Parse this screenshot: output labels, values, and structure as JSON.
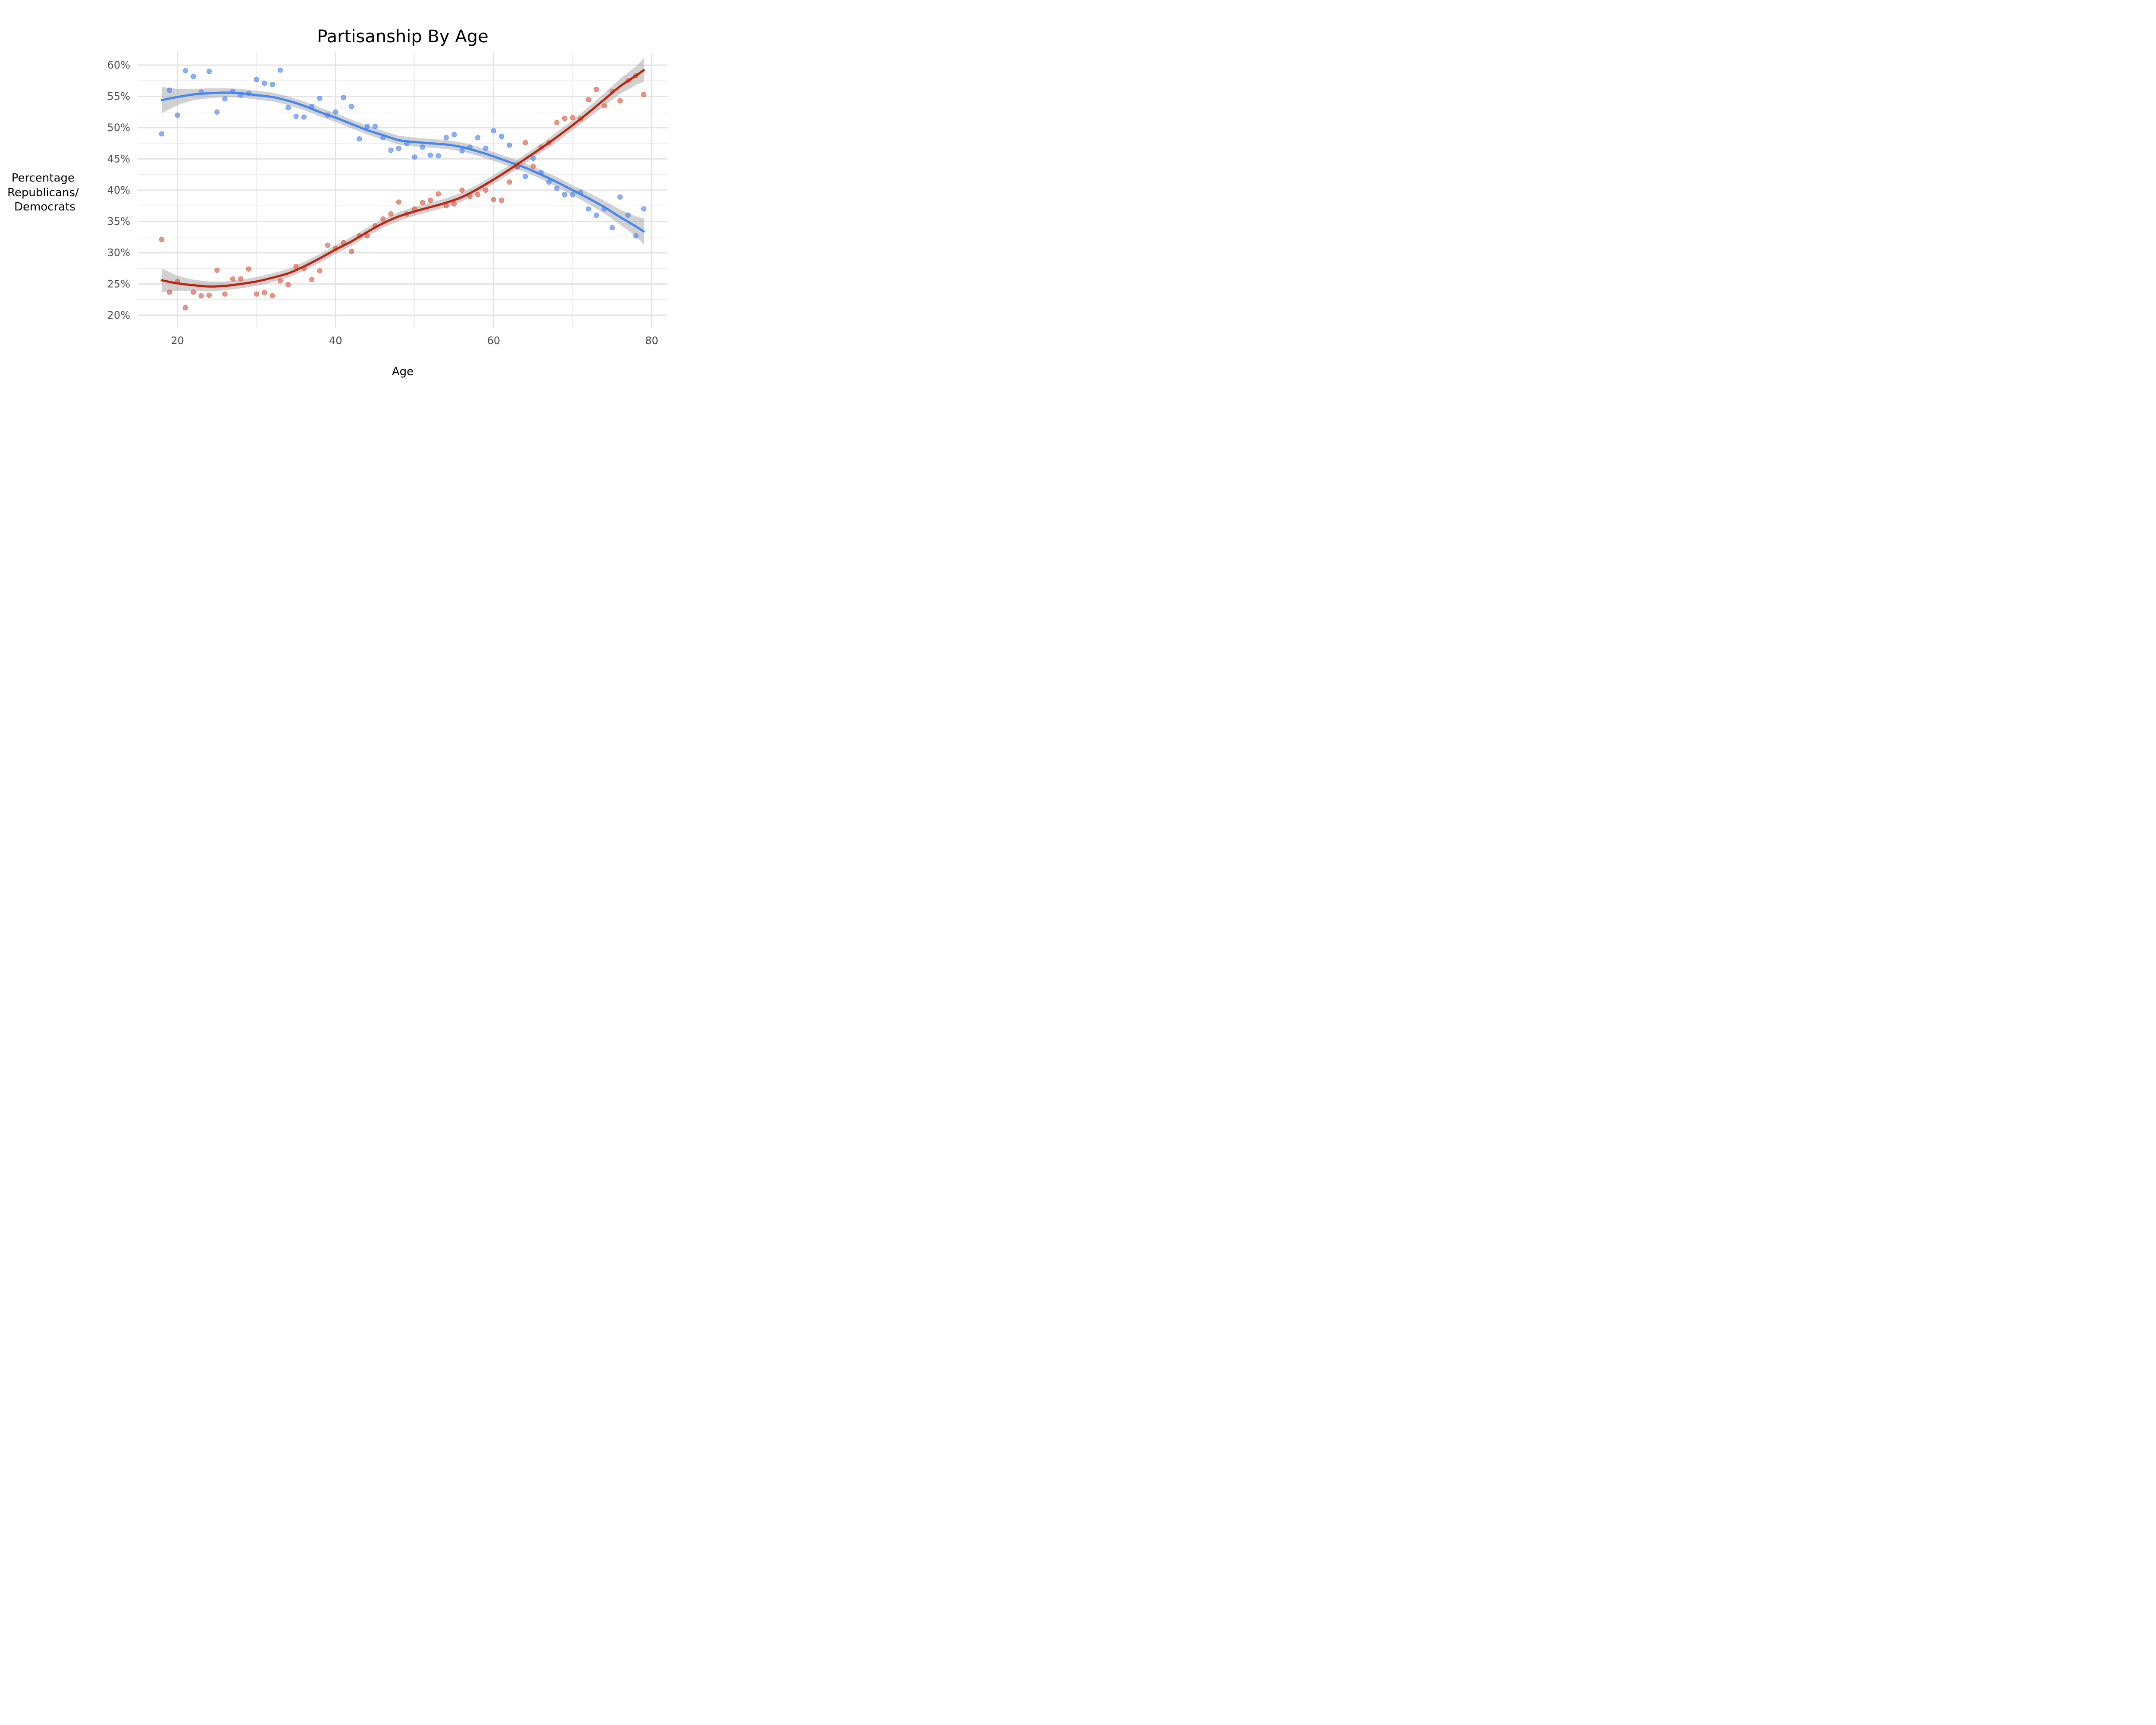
{
  "chart_data": {
    "type": "scatter",
    "title": "Partisanship By Age",
    "xlabel": "Age",
    "ylabel_lines": [
      "Percentage",
      "Republicans/",
      "Democrats"
    ],
    "xlim": [
      15,
      82
    ],
    "ylim": [
      18,
      62
    ],
    "x_ticks": [
      20,
      40,
      60,
      80
    ],
    "x_tick_labels": [
      "20",
      "40",
      "60",
      "80"
    ],
    "y_ticks": [
      20,
      25,
      30,
      35,
      40,
      45,
      50,
      55,
      60
    ],
    "y_tick_labels": [
      "20%",
      "25%",
      "30%",
      "35%",
      "40%",
      "45%",
      "50%",
      "55%",
      "60%"
    ],
    "grid": true,
    "legend": "none",
    "series": [
      {
        "color": "#4F86F7",
        "smooth_color": "#4285F4",
        "points": [
          [
            18,
            49.0
          ],
          [
            19,
            56.0
          ],
          [
            20,
            52.0
          ],
          [
            21,
            59.1
          ],
          [
            22,
            58.2
          ],
          [
            23,
            55.7
          ],
          [
            24,
            59.0
          ],
          [
            25,
            52.5
          ],
          [
            26,
            54.6
          ],
          [
            27,
            55.8
          ],
          [
            28,
            55.2
          ],
          [
            29,
            55.5
          ],
          [
            30,
            57.7
          ],
          [
            31,
            57.1
          ],
          [
            32,
            56.9
          ],
          [
            33,
            59.2
          ],
          [
            34,
            53.2
          ],
          [
            35,
            51.8
          ],
          [
            36,
            51.7
          ],
          [
            37,
            53.4
          ],
          [
            38,
            54.7
          ],
          [
            39,
            52.0
          ],
          [
            40,
            52.5
          ],
          [
            41,
            54.8
          ],
          [
            42,
            53.4
          ],
          [
            43,
            48.2
          ],
          [
            44,
            50.2
          ],
          [
            45,
            50.2
          ],
          [
            46,
            48.4
          ],
          [
            47,
            46.4
          ],
          [
            48,
            46.7
          ],
          [
            49,
            47.5
          ],
          [
            50,
            45.3
          ],
          [
            51,
            46.9
          ],
          [
            52,
            45.6
          ],
          [
            53,
            45.5
          ],
          [
            54,
            48.4
          ],
          [
            55,
            48.9
          ],
          [
            56,
            46.3
          ],
          [
            57,
            46.9
          ],
          [
            58,
            48.4
          ],
          [
            59,
            46.7
          ],
          [
            60,
            49.5
          ],
          [
            61,
            48.6
          ],
          [
            62,
            47.2
          ],
          [
            63,
            43.8
          ],
          [
            64,
            42.2
          ],
          [
            65,
            45.1
          ],
          [
            66,
            42.8
          ],
          [
            67,
            41.3
          ],
          [
            68,
            40.3
          ],
          [
            69,
            39.3
          ],
          [
            70,
            39.3
          ],
          [
            71,
            39.6
          ],
          [
            72,
            37.0
          ],
          [
            73,
            36.0
          ],
          [
            74,
            37.0
          ],
          [
            75,
            34.0
          ],
          [
            76,
            38.9
          ],
          [
            77,
            36.0
          ],
          [
            78,
            32.7
          ],
          [
            79,
            37.0
          ]
        ],
        "smooth": [
          [
            18,
            54.4
          ],
          [
            20,
            54.9
          ],
          [
            22,
            55.3
          ],
          [
            24,
            55.5
          ],
          [
            26,
            55.6
          ],
          [
            28,
            55.5
          ],
          [
            30,
            55.2
          ],
          [
            32,
            54.9
          ],
          [
            34,
            54.3
          ],
          [
            36,
            53.5
          ],
          [
            38,
            52.5
          ],
          [
            40,
            51.6
          ],
          [
            42,
            50.6
          ],
          [
            44,
            49.6
          ],
          [
            46,
            48.8
          ],
          [
            48,
            48.0
          ],
          [
            50,
            47.7
          ],
          [
            52,
            47.5
          ],
          [
            54,
            47.3
          ],
          [
            56,
            46.9
          ],
          [
            58,
            46.2
          ],
          [
            60,
            45.4
          ],
          [
            62,
            44.5
          ],
          [
            64,
            43.6
          ],
          [
            66,
            42.5
          ],
          [
            68,
            41.3
          ],
          [
            70,
            40.0
          ],
          [
            72,
            38.7
          ],
          [
            74,
            37.3
          ],
          [
            76,
            35.7
          ],
          [
            78,
            34.2
          ],
          [
            79,
            33.4
          ]
        ],
        "band_halfwidth": [
          2.1,
          1.3,
          0.9,
          0.8,
          0.7,
          0.7,
          0.7,
          0.7,
          0.7,
          0.7,
          0.7,
          0.7,
          0.7,
          0.7,
          0.7,
          0.7,
          0.7,
          0.7,
          0.7,
          0.7,
          0.7,
          0.7,
          0.7,
          0.7,
          0.7,
          0.8,
          0.8,
          0.9,
          1.0,
          1.2,
          1.6,
          2.1
        ]
      },
      {
        "color": "#D9604A",
        "smooth_color": "#C0220F",
        "points": [
          [
            18,
            32.1
          ],
          [
            19,
            23.7
          ],
          [
            20,
            25.4
          ],
          [
            21,
            21.2
          ],
          [
            22,
            23.7
          ],
          [
            23,
            23.1
          ],
          [
            24,
            23.2
          ],
          [
            25,
            27.2
          ],
          [
            26,
            23.4
          ],
          [
            27,
            25.8
          ],
          [
            28,
            25.8
          ],
          [
            29,
            27.4
          ],
          [
            30,
            23.4
          ],
          [
            31,
            23.6
          ],
          [
            32,
            23.1
          ],
          [
            33,
            25.5
          ],
          [
            34,
            24.9
          ],
          [
            35,
            27.8
          ],
          [
            36,
            27.5
          ],
          [
            37,
            25.7
          ],
          [
            38,
            27.1
          ],
          [
            39,
            31.2
          ],
          [
            40,
            30.7
          ],
          [
            41,
            31.6
          ],
          [
            42,
            30.2
          ],
          [
            43,
            32.7
          ],
          [
            44,
            32.7
          ],
          [
            45,
            34.3
          ],
          [
            46,
            35.4
          ],
          [
            47,
            36.2
          ],
          [
            48,
            38.1
          ],
          [
            49,
            36.2
          ],
          [
            50,
            37.0
          ],
          [
            51,
            38.0
          ],
          [
            52,
            38.4
          ],
          [
            53,
            39.4
          ],
          [
            54,
            37.5
          ],
          [
            55,
            37.8
          ],
          [
            56,
            40.0
          ],
          [
            57,
            39.0
          ],
          [
            58,
            39.3
          ],
          [
            59,
            40.0
          ],
          [
            60,
            38.5
          ],
          [
            61,
            38.4
          ],
          [
            62,
            41.3
          ],
          [
            63,
            43.7
          ],
          [
            64,
            47.6
          ],
          [
            65,
            43.8
          ],
          [
            66,
            46.9
          ],
          [
            67,
            47.6
          ],
          [
            68,
            50.8
          ],
          [
            69,
            51.5
          ],
          [
            70,
            51.6
          ],
          [
            71,
            51.4
          ],
          [
            72,
            54.5
          ],
          [
            73,
            56.1
          ],
          [
            74,
            53.5
          ],
          [
            75,
            55.8
          ],
          [
            76,
            54.3
          ],
          [
            77,
            57.5
          ],
          [
            78,
            58.3
          ],
          [
            79,
            55.3
          ]
        ],
        "smooth": [
          [
            18,
            25.6
          ],
          [
            20,
            25.1
          ],
          [
            22,
            24.8
          ],
          [
            24,
            24.6
          ],
          [
            26,
            24.7
          ],
          [
            28,
            25.0
          ],
          [
            30,
            25.4
          ],
          [
            32,
            26.0
          ],
          [
            34,
            26.7
          ],
          [
            36,
            27.8
          ],
          [
            38,
            29.1
          ],
          [
            40,
            30.5
          ],
          [
            42,
            31.8
          ],
          [
            44,
            33.3
          ],
          [
            46,
            34.7
          ],
          [
            48,
            35.8
          ],
          [
            50,
            36.6
          ],
          [
            52,
            37.3
          ],
          [
            54,
            38.0
          ],
          [
            56,
            38.9
          ],
          [
            58,
            40.2
          ],
          [
            60,
            41.7
          ],
          [
            62,
            43.3
          ],
          [
            64,
            45.0
          ],
          [
            66,
            46.7
          ],
          [
            68,
            48.5
          ],
          [
            70,
            50.4
          ],
          [
            72,
            52.4
          ],
          [
            74,
            54.5
          ],
          [
            76,
            56.6
          ],
          [
            78,
            58.3
          ],
          [
            79,
            59.2
          ]
        ],
        "band_halfwidth": [
          1.9,
          1.2,
          0.9,
          0.8,
          0.7,
          0.7,
          0.7,
          0.7,
          0.7,
          0.7,
          0.7,
          0.7,
          0.7,
          0.7,
          0.7,
          0.7,
          0.7,
          0.7,
          0.7,
          0.7,
          0.7,
          0.7,
          0.7,
          0.7,
          0.7,
          0.8,
          0.8,
          0.9,
          1.0,
          1.2,
          1.5,
          1.9
        ]
      }
    ]
  }
}
